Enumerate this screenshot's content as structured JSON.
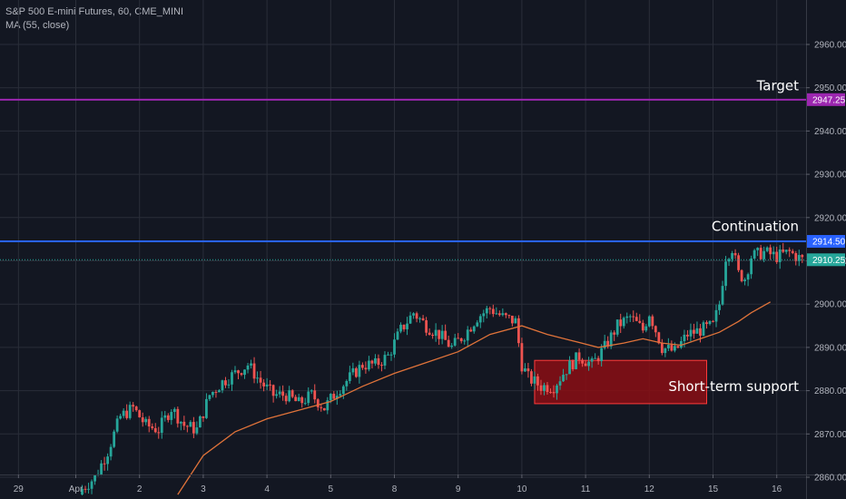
{
  "legend": {
    "symbol_line": "S&P 500 E-mini Futures, 60, CME_MINI",
    "indicator_line": "MA (55, close)"
  },
  "chart_data": {
    "type": "candlestick",
    "title": "S&P 500 E-mini Futures, 60, CME_MINI",
    "indicator": "MA (55, close)",
    "ylim": [
      2856,
      2966
    ],
    "y_ticks": [
      2860,
      2870,
      2880,
      2890,
      2900,
      2910,
      2920,
      2930,
      2940,
      2950,
      2960
    ],
    "y_tick_labels": [
      "2860.00",
      "2870.00",
      "2880.00",
      "2890.00",
      "2900.00",
      "2910.00",
      "2920.00",
      "2930.00",
      "2940.00",
      "2950.00",
      "2960.00"
    ],
    "x_ticks": [
      {
        "label": "29",
        "bar": -9
      },
      {
        "label": "Apr",
        "bar": 0
      },
      {
        "label": "2",
        "bar": 10
      },
      {
        "label": "3",
        "bar": 20
      },
      {
        "label": "4",
        "bar": 30
      },
      {
        "label": "5",
        "bar": 40
      },
      {
        "label": "8",
        "bar": 50
      },
      {
        "label": "9",
        "bar": 60
      },
      {
        "label": "10",
        "bar": 70
      },
      {
        "label": "11",
        "bar": 80
      },
      {
        "label": "12",
        "bar": 90
      },
      {
        "label": "15",
        "bar": 100
      },
      {
        "label": "16",
        "bar": 110
      }
    ],
    "close_path": [
      [
        0,
        2856
      ],
      [
        3,
        2860
      ],
      [
        5,
        2866
      ],
      [
        7,
        2874
      ],
      [
        9,
        2876
      ],
      [
        11,
        2872
      ],
      [
        13,
        2871
      ],
      [
        15,
        2876
      ],
      [
        17,
        2872
      ],
      [
        19,
        2871
      ],
      [
        21,
        2879
      ],
      [
        23,
        2882
      ],
      [
        25,
        2884
      ],
      [
        27,
        2886
      ],
      [
        29,
        2882
      ],
      [
        31,
        2879
      ],
      [
        33,
        2879
      ],
      [
        35,
        2877
      ],
      [
        37,
        2879
      ],
      [
        39,
        2876
      ],
      [
        41,
        2880
      ],
      [
        43,
        2883
      ],
      [
        45,
        2886
      ],
      [
        47,
        2886
      ],
      [
        49,
        2888
      ],
      [
        51,
        2894
      ],
      [
        53,
        2898
      ],
      [
        55,
        2895
      ],
      [
        57,
        2893
      ],
      [
        59,
        2890
      ],
      [
        61,
        2893
      ],
      [
        63,
        2897
      ],
      [
        65,
        2899
      ],
      [
        67,
        2897
      ],
      [
        69,
        2896
      ],
      [
        70,
        2886
      ],
      [
        71,
        2883
      ],
      [
        73,
        2881
      ],
      [
        75,
        2881
      ],
      [
        77,
        2885
      ],
      [
        79,
        2888
      ],
      [
        81,
        2886
      ],
      [
        83,
        2890
      ],
      [
        85,
        2895
      ],
      [
        87,
        2897
      ],
      [
        89,
        2894
      ],
      [
        90,
        2898
      ],
      [
        92,
        2890
      ],
      [
        94,
        2889
      ],
      [
        96,
        2893
      ],
      [
        98,
        2894
      ],
      [
        100,
        2895
      ],
      [
        101,
        2900
      ],
      [
        102,
        2911
      ],
      [
        103,
        2913
      ],
      [
        104,
        2907
      ],
      [
        105,
        2906
      ],
      [
        106,
        2911
      ],
      [
        108,
        2912
      ],
      [
        110,
        2911
      ],
      [
        112,
        2912
      ],
      [
        114,
        2910.25
      ]
    ],
    "ma_path": [
      [
        16,
        2856
      ],
      [
        20,
        2865
      ],
      [
        25,
        2870.5
      ],
      [
        30,
        2873.5
      ],
      [
        35,
        2875.5
      ],
      [
        40,
        2877.5
      ],
      [
        45,
        2881
      ],
      [
        50,
        2884
      ],
      [
        55,
        2886.5
      ],
      [
        60,
        2889
      ],
      [
        65,
        2893
      ],
      [
        70,
        2895
      ],
      [
        74,
        2893
      ],
      [
        78,
        2891.5
      ],
      [
        82,
        2890
      ],
      [
        86,
        2891
      ],
      [
        89,
        2892
      ],
      [
        92,
        2891
      ],
      [
        95,
        2890.5
      ],
      [
        98,
        2892
      ],
      [
        101,
        2893.5
      ],
      [
        104,
        2896
      ],
      [
        106,
        2898
      ],
      [
        109,
        2900.5
      ]
    ],
    "horizontal_lines": [
      {
        "price": 2947.25,
        "label": "2947.25",
        "color": "#9c27b0",
        "style": "solid"
      },
      {
        "price": 2914.5,
        "label": "2914.50",
        "color": "#2962ff",
        "style": "solid"
      },
      {
        "price": 2910.25,
        "label": "2910.25",
        "color": "#26a69a",
        "style": "dotted"
      }
    ],
    "zone": {
      "bar_start": 72,
      "bar_end": 99,
      "price_low": 2877,
      "price_high": 2887,
      "color": "#8b0e14"
    },
    "annotations": [
      {
        "text": "Target",
        "price": 2950.5
      },
      {
        "text": "Continuation",
        "price": 2918
      },
      {
        "text": "Short-term support",
        "price": 2881
      }
    ],
    "colors": {
      "up": "#26a69a",
      "down": "#ef5350",
      "ma": "#e0733a",
      "grid": "#2a2e39",
      "background": "#131722"
    }
  }
}
